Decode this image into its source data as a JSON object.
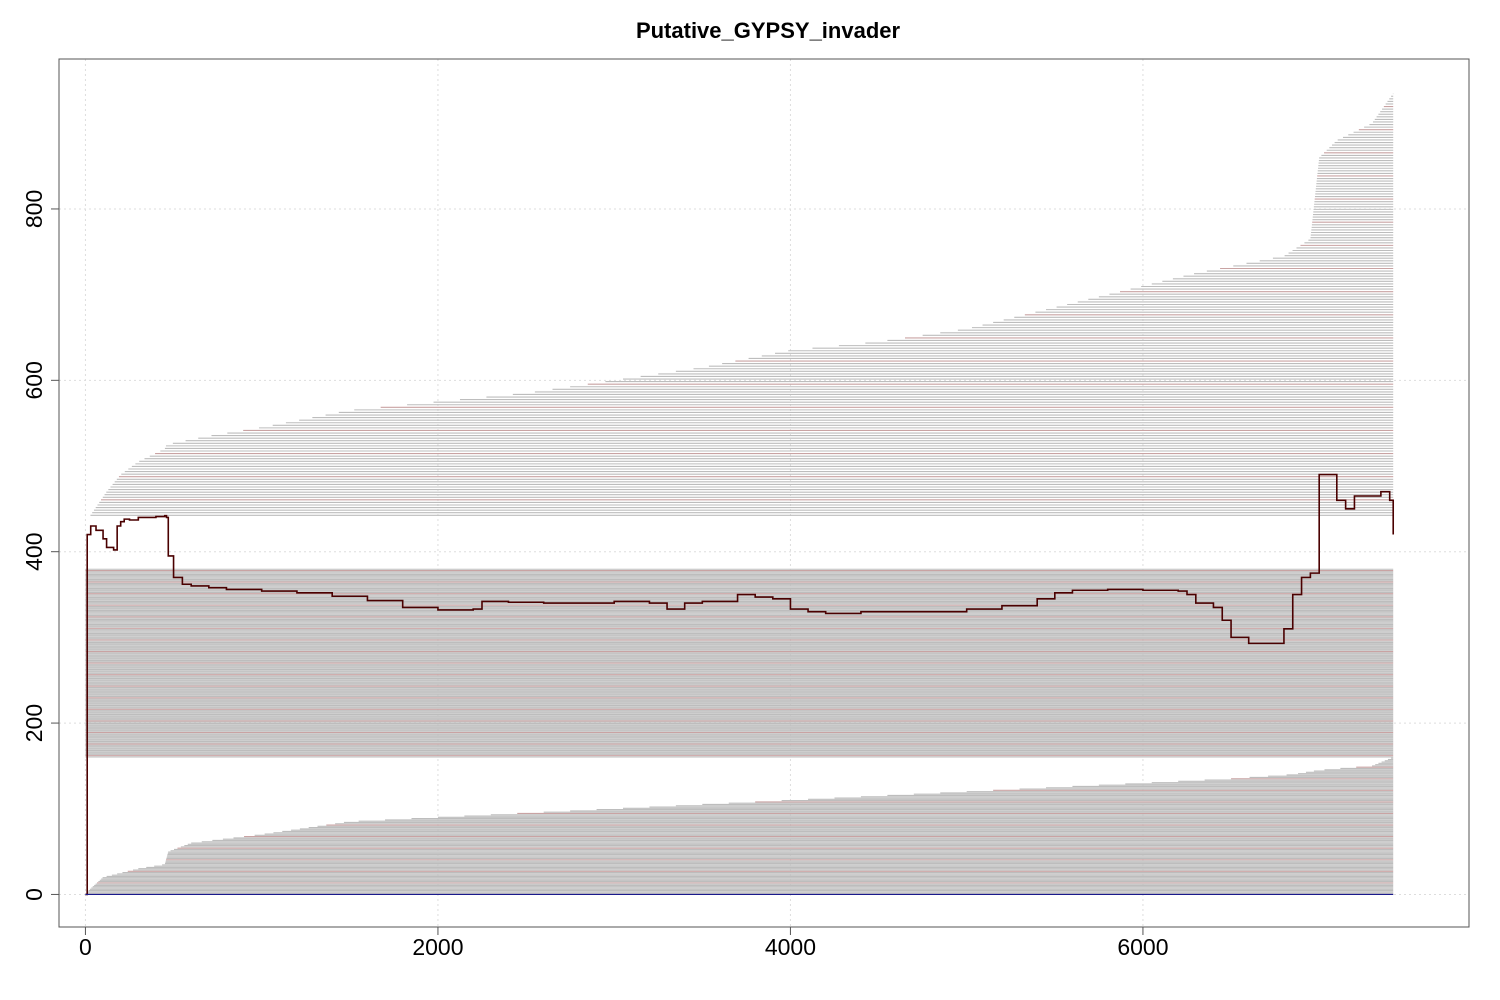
{
  "chart_data": {
    "type": "line",
    "title": "Putative_GYPSY_invader",
    "xlabel": "",
    "ylabel": "",
    "xlim": [
      -150,
      7850
    ],
    "ylim": [
      -38,
      975
    ],
    "x_ticks": [
      0,
      2000,
      4000,
      6000
    ],
    "x_tick_labels": [
      "0",
      "2000",
      "4000",
      "6000"
    ],
    "y_ticks": [
      0,
      200,
      400,
      600,
      800
    ],
    "y_tick_labels": [
      "0",
      "200",
      "400",
      "600",
      "800"
    ],
    "grid": true,
    "colors": {
      "segments": "#bdbdbd",
      "segment_accent": "#c9a3a3",
      "coverage": "#4a0000",
      "baseline": "#1a1a8c",
      "frame": "#555555",
      "grid": "#dddddd"
    },
    "alignment_segments": {
      "description_of_layer": "stacked horizontal hits, each starting at x and ending at 7420",
      "end_x": 7420,
      "start_x_by_row_top_curve": [
        [
          0,
          935
        ],
        [
          20,
          440
        ],
        [
          120,
          470
        ],
        [
          200,
          490
        ],
        [
          300,
          505
        ],
        [
          450,
          520
        ],
        [
          460,
          525
        ],
        [
          700,
          535
        ],
        [
          1000,
          545
        ],
        [
          1500,
          565
        ],
        [
          2000,
          575
        ],
        [
          2500,
          585
        ],
        [
          3000,
          600
        ],
        [
          3500,
          615
        ],
        [
          4000,
          635
        ],
        [
          4500,
          645
        ],
        [
          5000,
          660
        ],
        [
          5500,
          685
        ],
        [
          6000,
          710
        ],
        [
          6300,
          725
        ],
        [
          6800,
          745
        ],
        [
          6950,
          765
        ],
        [
          7000,
          860
        ],
        [
          7100,
          880
        ],
        [
          7300,
          900
        ],
        [
          7420,
          935
        ]
      ],
      "start_x_by_row_bottom_curve": [
        [
          0,
          0
        ],
        [
          20,
          5
        ],
        [
          100,
          20
        ],
        [
          300,
          30
        ],
        [
          450,
          35
        ],
        [
          470,
          50
        ],
        [
          600,
          60
        ],
        [
          1000,
          70
        ],
        [
          1500,
          85
        ],
        [
          2000,
          90
        ],
        [
          2500,
          95
        ],
        [
          3000,
          100
        ],
        [
          3500,
          105
        ],
        [
          4000,
          110
        ],
        [
          4500,
          115
        ],
        [
          5000,
          120
        ],
        [
          5500,
          125
        ],
        [
          6000,
          130
        ],
        [
          6500,
          135
        ],
        [
          6850,
          140
        ],
        [
          7000,
          145
        ],
        [
          7300,
          150
        ],
        [
          7420,
          160
        ]
      ],
      "dense_band": [
        160,
        380
      ]
    },
    "series": [
      {
        "name": "",
        "x": [
          0,
          10,
          30,
          60,
          100,
          120,
          160,
          180,
          200,
          220,
          250,
          300,
          350,
          400,
          450,
          460,
          470,
          500,
          550,
          600,
          700,
          800,
          1000,
          1200,
          1400,
          1600,
          1800,
          2000,
          2200,
          2250,
          2400,
          2600,
          2800,
          3000,
          3200,
          3300,
          3400,
          3500,
          3600,
          3700,
          3800,
          3900,
          4000,
          4100,
          4200,
          4400,
          4600,
          4800,
          5000,
          5200,
          5400,
          5500,
          5600,
          5800,
          6000,
          6200,
          6250,
          6300,
          6400,
          6450,
          6500,
          6600,
          6700,
          6800,
          6850,
          6900,
          6950,
          7000,
          7100,
          7150,
          7200,
          7300,
          7350,
          7400,
          7420
        ],
        "values": [
          0,
          420,
          430,
          425,
          415,
          405,
          402,
          430,
          435,
          438,
          437,
          440,
          440,
          441,
          442,
          440,
          395,
          370,
          362,
          360,
          358,
          356,
          354,
          352,
          348,
          343,
          335,
          332,
          333,
          342,
          341,
          340,
          340,
          342,
          340,
          333,
          340,
          342,
          342,
          350,
          347,
          345,
          333,
          330,
          328,
          330,
          330,
          330,
          333,
          337,
          345,
          352,
          355,
          356,
          355,
          354,
          350,
          340,
          335,
          320,
          300,
          293,
          293,
          310,
          350,
          370,
          375,
          490,
          460,
          450,
          465,
          465,
          470,
          460,
          420
        ]
      },
      {
        "name": "",
        "x": [
          0,
          7420
        ],
        "values": [
          0,
          0
        ]
      }
    ]
  }
}
